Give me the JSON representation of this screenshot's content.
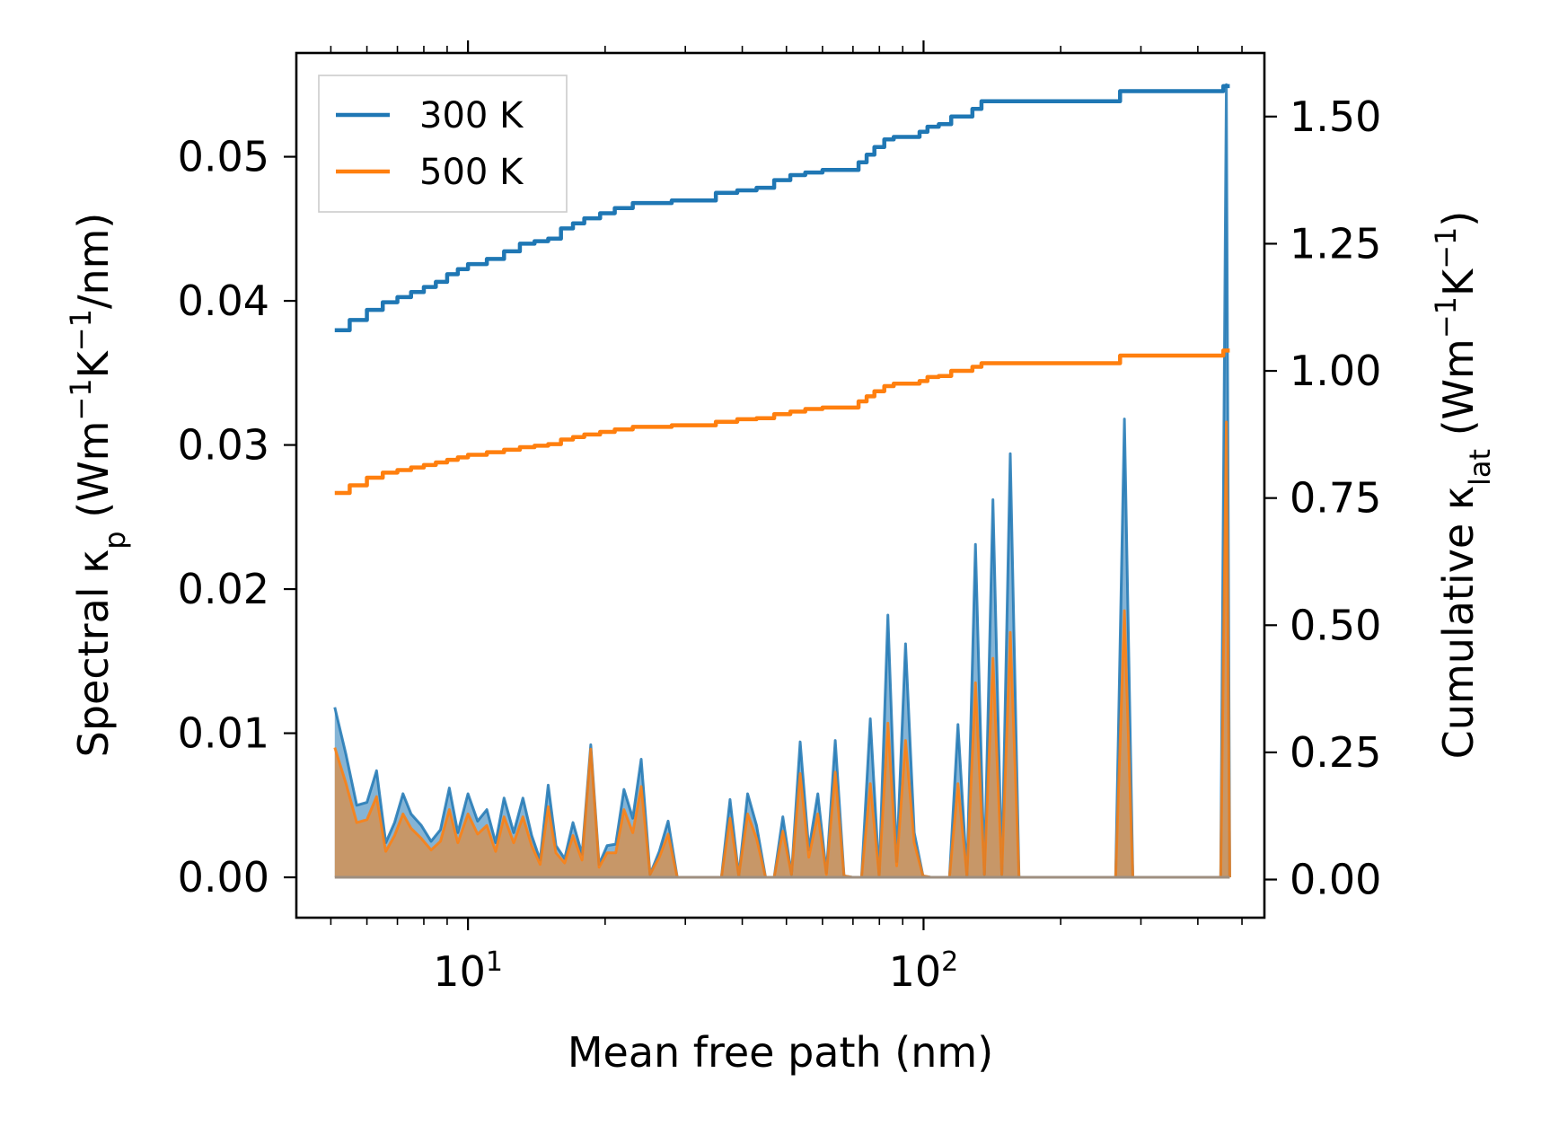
{
  "chart_data": {
    "type": "line",
    "title": "",
    "xlabel": "Mean free path (nm)",
    "xscale": "log",
    "xlim": [
      4.2,
      560
    ],
    "x_tick_labels": [
      {
        "value": 10,
        "base": "10",
        "exp": "1"
      },
      {
        "value": 100,
        "base": "10",
        "exp": "2"
      }
    ],
    "left_axis": {
      "label_parts": [
        "Spectral κ",
        "p",
        " (Wm",
        "−1",
        "K",
        "−1",
        "/nm)"
      ],
      "ylim": [
        -0.0028,
        0.0572
      ],
      "ticks": [
        0.0,
        0.01,
        0.02,
        0.03,
        0.04,
        0.05
      ],
      "tick_labels": [
        "0.00",
        "0.01",
        "0.02",
        "0.03",
        "0.04",
        "0.05"
      ]
    },
    "right_axis": {
      "label_parts": [
        "Cumulative κ",
        "lat",
        " (Wm",
        "−1",
        "K",
        "−1",
        ")"
      ],
      "ylim": [
        -0.075,
        1.625
      ],
      "ticks": [
        0.0,
        0.25,
        0.5,
        0.75,
        1.0,
        1.25,
        1.5
      ],
      "tick_labels": [
        "0.00",
        "0.25",
        "0.50",
        "0.75",
        "1.00",
        "1.25",
        "1.50"
      ]
    },
    "legend": {
      "position": "top-left",
      "entries": [
        "300 K",
        "500 K"
      ]
    },
    "colors": {
      "300 K": "#1f77b4",
      "500 K": "#ff7f0e"
    },
    "spectral_x": [
      5.1,
      5.4,
      5.7,
      6.0,
      6.3,
      6.6,
      6.9,
      7.2,
      7.5,
      7.9,
      8.3,
      8.7,
      9.1,
      9.5,
      10.0,
      10.5,
      11.0,
      11.5,
      12.0,
      12.6,
      13.2,
      13.8,
      14.4,
      15.0,
      15.6,
      16.3,
      17.0,
      17.8,
      18.6,
      19.4,
      20.2,
      21.1,
      22.0,
      23.0,
      24.0,
      25.1,
      26.3,
      27.5,
      28.8,
      30.1,
      31.5,
      33.0,
      34.5,
      36.0,
      37.6,
      39.3,
      41.1,
      43.0,
      45.0,
      47.0,
      49.1,
      51.3,
      53.6,
      56.0,
      58.6,
      61.2,
      64.0,
      66.9,
      70.0,
      73.1,
      76.4,
      79.9,
      83.5,
      87.3,
      91.3,
      95.4,
      99.7,
      104.0,
      109.0,
      114.0,
      119.0,
      124.5,
      130.0,
      136.0,
      142.0,
      148.5,
      155.0,
      162.0,
      169.5,
      177.0,
      185.0,
      193.5,
      202.0,
      211.0,
      221.0,
      231.0,
      241.0,
      252.0,
      264.0,
      276.0,
      288.0,
      301.0,
      315.0,
      329.0,
      344.0,
      360.0,
      376.0,
      393.0,
      411.0,
      430.0,
      449.0,
      462.0,
      470.0
    ],
    "spectral_300K": [
      0.0118,
      0.0085,
      0.005,
      0.0052,
      0.0074,
      0.0024,
      0.0038,
      0.0058,
      0.0044,
      0.0036,
      0.0025,
      0.0033,
      0.0062,
      0.0031,
      0.0058,
      0.0039,
      0.0047,
      0.0024,
      0.0055,
      0.0031,
      0.0055,
      0.0029,
      0.0012,
      0.0064,
      0.0022,
      0.0013,
      0.0038,
      0.0016,
      0.0092,
      0.0009,
      0.0022,
      0.0023,
      0.0061,
      0.0041,
      0.0082,
      0.0002,
      0.0018,
      0.0039,
      0.0,
      0.0,
      0.0,
      0.0,
      0.0,
      0.0,
      0.0054,
      0.0001,
      0.0058,
      0.0036,
      0.0,
      0.0,
      0.0042,
      0.0002,
      0.0094,
      0.0019,
      0.0058,
      0.0003,
      0.0095,
      0.0001,
      0.0,
      0.0,
      0.011,
      0.0001,
      0.0182,
      0.0011,
      0.0162,
      0.0031,
      0.0001,
      0.0,
      0.0,
      0.0,
      0.0106,
      0.0001,
      0.0231,
      0.0002,
      0.0262,
      0.0002,
      0.0294,
      0.0,
      0.0,
      0.0,
      0.0,
      0.0,
      0.0,
      0.0,
      0.0,
      0.0,
      0.0,
      0.0,
      0.0,
      0.0318,
      0.0,
      0.0,
      0.0,
      0.0,
      0.0,
      0.0,
      0.0,
      0.0,
      0.0,
      0.0,
      0.0,
      0.055,
      0.0
    ],
    "spectral_500K": [
      0.009,
      0.0065,
      0.0038,
      0.004,
      0.0056,
      0.0018,
      0.0029,
      0.0044,
      0.0034,
      0.0027,
      0.0019,
      0.0025,
      0.0047,
      0.0024,
      0.0044,
      0.003,
      0.0036,
      0.0018,
      0.0042,
      0.0024,
      0.0042,
      0.0022,
      0.0009,
      0.0049,
      0.0017,
      0.001,
      0.0029,
      0.0012,
      0.0089,
      0.0007,
      0.0017,
      0.0017,
      0.0047,
      0.0031,
      0.0063,
      0.0002,
      0.0014,
      0.003,
      0.0,
      0.0,
      0.0,
      0.0,
      0.0,
      0.0,
      0.0041,
      0.0001,
      0.0044,
      0.0027,
      0.0,
      0.0,
      0.0032,
      0.0002,
      0.0072,
      0.0014,
      0.0044,
      0.0002,
      0.0073,
      0.0001,
      0.0,
      0.0,
      0.0065,
      0.0001,
      0.0107,
      0.0008,
      0.0095,
      0.0024,
      0.0001,
      0.0,
      0.0,
      0.0,
      0.0065,
      0.0001,
      0.0135,
      0.0002,
      0.0152,
      0.0002,
      0.017,
      0.0,
      0.0,
      0.0,
      0.0,
      0.0,
      0.0,
      0.0,
      0.0,
      0.0,
      0.0,
      0.0,
      0.0,
      0.0185,
      0.0,
      0.0,
      0.0,
      0.0,
      0.0,
      0.0,
      0.0,
      0.0,
      0.0,
      0.0,
      0.0,
      0.0316,
      0.0
    ],
    "cumulative_x": [
      5.1,
      5.5,
      6.0,
      6.5,
      7.0,
      7.5,
      8.0,
      8.5,
      9.0,
      9.5,
      10.0,
      11.0,
      12.0,
      13.0,
      14.0,
      15.0,
      16.0,
      17.0,
      18.0,
      19.5,
      21.0,
      23.0,
      25.0,
      28.0,
      32.0,
      35.0,
      39.0,
      43.0,
      47.0,
      51.0,
      55.0,
      60.0,
      66.0,
      72.0,
      75.0,
      78.0,
      82.0,
      86.0,
      92.0,
      98.0,
      102.0,
      108.0,
      115.0,
      122.0,
      128.0,
      134.0,
      140.0,
      160.0,
      200.0,
      240.0,
      270.0,
      300.0,
      350.0,
      400.0,
      440.0,
      455.0,
      470.0
    ],
    "cumulative_300K": [
      1.08,
      1.1,
      1.12,
      1.135,
      1.145,
      1.155,
      1.165,
      1.175,
      1.19,
      1.2,
      1.21,
      1.22,
      1.235,
      1.25,
      1.255,
      1.26,
      1.28,
      1.29,
      1.3,
      1.31,
      1.32,
      1.33,
      1.33,
      1.335,
      1.335,
      1.35,
      1.355,
      1.36,
      1.375,
      1.385,
      1.39,
      1.395,
      1.395,
      1.41,
      1.425,
      1.44,
      1.455,
      1.46,
      1.46,
      1.47,
      1.48,
      1.485,
      1.5,
      1.5,
      1.515,
      1.53,
      1.53,
      1.53,
      1.53,
      1.53,
      1.55,
      1.55,
      1.55,
      1.55,
      1.55,
      1.56,
      1.56
    ],
    "cumulative_500K": [
      0.76,
      0.775,
      0.79,
      0.8,
      0.805,
      0.81,
      0.815,
      0.82,
      0.825,
      0.83,
      0.835,
      0.84,
      0.845,
      0.85,
      0.853,
      0.856,
      0.865,
      0.87,
      0.875,
      0.88,
      0.885,
      0.89,
      0.89,
      0.893,
      0.893,
      0.9,
      0.905,
      0.907,
      0.915,
      0.92,
      0.925,
      0.928,
      0.928,
      0.94,
      0.95,
      0.96,
      0.97,
      0.975,
      0.975,
      0.98,
      0.988,
      0.99,
      1.0,
      1.0,
      1.008,
      1.015,
      1.015,
      1.015,
      1.015,
      1.015,
      1.03,
      1.03,
      1.03,
      1.03,
      1.03,
      1.04,
      1.04
    ]
  }
}
